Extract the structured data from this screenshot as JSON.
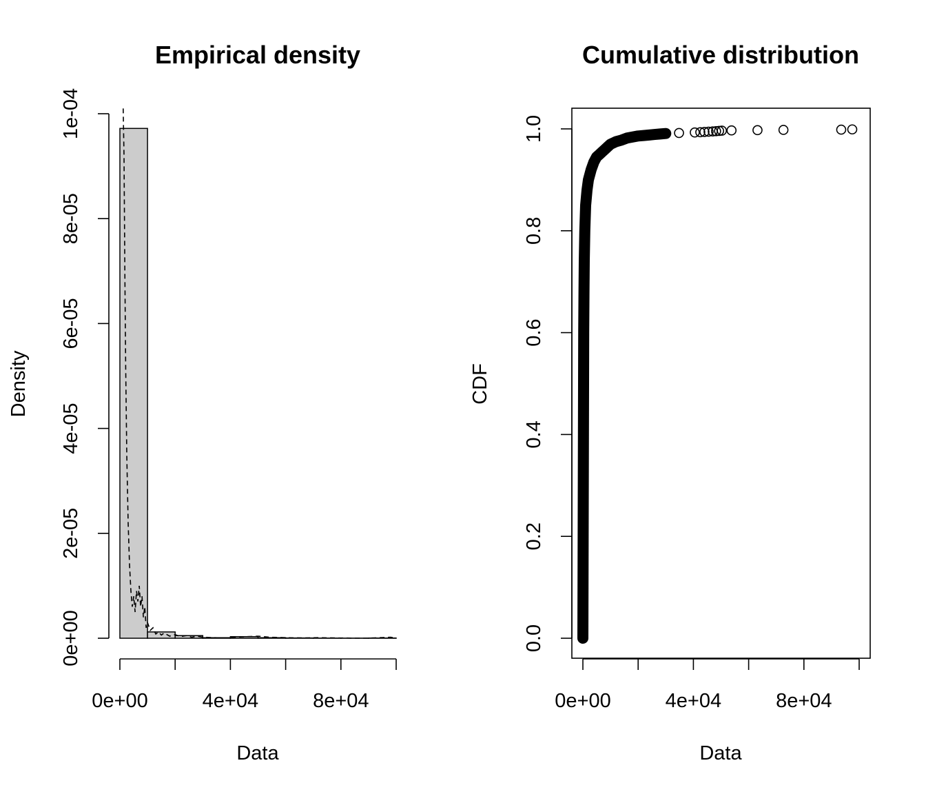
{
  "chart_data": [
    {
      "type": "bar",
      "title": "Empirical density",
      "xlabel": "Data",
      "ylabel": "Density",
      "xlim": [
        0,
        100000
      ],
      "ylim": [
        0,
        0.0001
      ],
      "xticks": [
        0,
        20000,
        40000,
        60000,
        80000,
        100000
      ],
      "xtick_labels": [
        "0e+00",
        "",
        "4e+04",
        "",
        "8e+04",
        ""
      ],
      "yticks": [
        0,
        2e-05,
        4e-05,
        6e-05,
        8e-05,
        0.0001
      ],
      "ytick_labels": [
        "0e+00",
        "2e-05",
        "4e-05",
        "6e-05",
        "8e-05",
        "1e-04"
      ],
      "bar_color": "#cccccc",
      "histogram": {
        "bin_edges": [
          0,
          10000,
          20000,
          30000,
          40000,
          50000,
          60000,
          70000,
          80000,
          90000,
          100000
        ],
        "densities": [
          9.72e-05,
          1.2e-06,
          5e-07,
          1e-07,
          3e-07,
          1e-07,
          5e-08,
          3e-08,
          2e-08,
          4e-08
        ]
      },
      "density_line": {
        "style": "dashed",
        "x": [
          1200,
          1500,
          1800,
          2100,
          2500,
          3000,
          3500,
          4000,
          4500,
          5000,
          5500,
          6000,
          6500,
          7000,
          7500,
          8000,
          8500,
          9000,
          9500,
          10000,
          11000,
          12000,
          13000,
          14000,
          15000,
          16000,
          18000,
          20000,
          22000,
          24000,
          26000,
          28000,
          30000,
          34000,
          38000,
          42000,
          46000,
          50000,
          54000,
          60000,
          66000,
          72000,
          78000,
          84000,
          90000,
          94000,
          98000,
          100000
        ],
        "y": [
          0.000101,
          9.2e-05,
          7e-05,
          5.2e-05,
          3.5e-05,
          2.2e-05,
          1.4e-05,
          9e-06,
          6e-06,
          8e-06,
          5e-06,
          9e-06,
          7e-06,
          1e-05,
          6e-06,
          8e-06,
          4e-06,
          6e-06,
          2e-06,
          3e-06,
          1.5e-06,
          2e-06,
          8e-07,
          1.2e-06,
          6e-07,
          1e-06,
          4e-07,
          7e-07,
          3e-07,
          5e-07,
          2e-07,
          4e-07,
          2e-07,
          1e-07,
          5e-08,
          2e-07,
          3e-07,
          4e-07,
          2e-07,
          1e-07,
          5e-08,
          1e-07,
          5e-08,
          3e-08,
          3e-08,
          1e-07,
          2e-07,
          0.0
        ]
      }
    },
    {
      "type": "scatter",
      "title": "Cumulative distribution",
      "xlabel": "Data",
      "ylabel": "CDF",
      "xlim": [
        -4000,
        102000
      ],
      "ylim": [
        -0.04,
        1.04
      ],
      "xticks": [
        0,
        20000,
        40000,
        60000,
        80000,
        100000
      ],
      "xtick_labels": [
        "0e+00",
        "",
        "4e+04",
        "",
        "8e+04",
        ""
      ],
      "yticks": [
        0,
        0.2,
        0.4,
        0.6,
        0.8,
        1.0
      ],
      "ytick_labels": [
        "0.0",
        "0.2",
        "0.4",
        "0.6",
        "0.8",
        "1.0"
      ],
      "marker": "open-circle",
      "cdf_curve": [
        [
          0,
          0.0
        ],
        [
          50,
          0.1
        ],
        [
          100,
          0.2
        ],
        [
          150,
          0.3
        ],
        [
          200,
          0.4
        ],
        [
          250,
          0.5
        ],
        [
          300,
          0.6
        ],
        [
          400,
          0.68
        ],
        [
          500,
          0.74
        ],
        [
          700,
          0.8
        ],
        [
          1000,
          0.85
        ],
        [
          1500,
          0.88
        ],
        [
          2000,
          0.9
        ],
        [
          3000,
          0.92
        ],
        [
          4000,
          0.935
        ],
        [
          5000,
          0.945
        ],
        [
          6000,
          0.95
        ],
        [
          7000,
          0.955
        ],
        [
          8000,
          0.96
        ],
        [
          9000,
          0.965
        ],
        [
          10000,
          0.97
        ],
        [
          12000,
          0.975
        ],
        [
          14000,
          0.978
        ],
        [
          16000,
          0.982
        ],
        [
          18000,
          0.984
        ],
        [
          20000,
          0.986
        ],
        [
          22000,
          0.987
        ],
        [
          24000,
          0.988
        ],
        [
          26000,
          0.989
        ],
        [
          28000,
          0.99
        ],
        [
          30000,
          0.991
        ]
      ],
      "points": [
        [
          34800,
          0.992
        ],
        [
          40500,
          0.993
        ],
        [
          42500,
          0.9935
        ],
        [
          44000,
          0.994
        ],
        [
          45500,
          0.9945
        ],
        [
          47000,
          0.995
        ],
        [
          48200,
          0.9955
        ],
        [
          49300,
          0.996
        ],
        [
          50300,
          0.9965
        ],
        [
          53800,
          0.997
        ],
        [
          63200,
          0.9975
        ],
        [
          72600,
          0.998
        ],
        [
          93500,
          0.9985
        ],
        [
          97500,
          0.999
        ]
      ]
    }
  ]
}
